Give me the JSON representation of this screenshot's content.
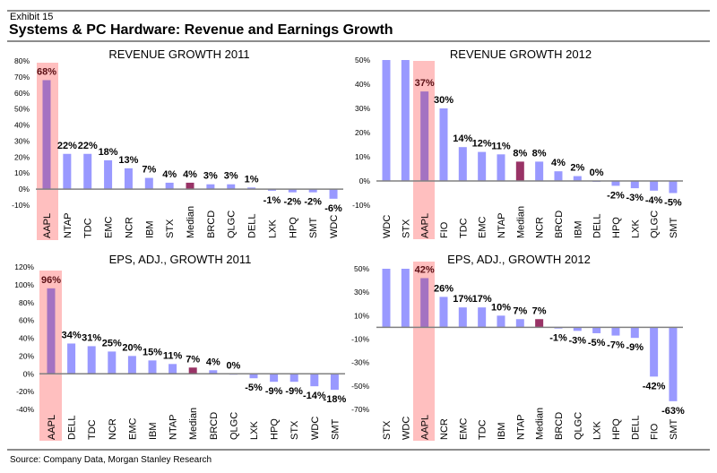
{
  "header": {
    "exhibit": "Exhibit 15",
    "title": "Systems & PC Hardware: Revenue and Earnings Growth"
  },
  "footer": {
    "source": "Source: Company Data, Morgan Stanley Research"
  },
  "colors": {
    "bar": "#9999ff",
    "median": "#993366",
    "highlight_band": "#ffbfbf",
    "highlight_bar": "#a472c2",
    "axis": "#808080"
  },
  "chart_data": [
    {
      "id": "rev2011",
      "type": "bar",
      "title": "REVENUE GROWTH 2011",
      "xlabel": "",
      "ylabel": "",
      "ylim": [
        -10,
        80
      ],
      "yticks": [
        80,
        70,
        60,
        50,
        40,
        30,
        20,
        10,
        0,
        -10
      ],
      "highlight": "AAPL",
      "median_category": "Median",
      "categories": [
        "AAPL",
        "NTAP",
        "TDC",
        "EMC",
        "NCR",
        "IBM",
        "STX",
        "Median",
        "BRCD",
        "QLGC",
        "DELL",
        "LXK",
        "HPQ",
        "SMT",
        "WDC"
      ],
      "values": [
        68,
        22,
        22,
        18,
        13,
        7,
        4,
        4,
        3,
        3,
        1,
        -1,
        -2,
        -2,
        -6
      ],
      "labels": [
        "68%",
        "22%",
        "22%",
        "18%",
        "13%",
        "7%",
        "4%",
        "4%",
        "3%",
        "3%",
        "1%",
        "-1%",
        "-2%",
        "-2%",
        "-6%"
      ],
      "grid": false,
      "legend": "none"
    },
    {
      "id": "rev2012",
      "type": "bar",
      "title": "REVENUE GROWTH 2012",
      "xlabel": "",
      "ylabel": "",
      "ylim": [
        -10,
        50
      ],
      "yticks": [
        50,
        40,
        30,
        20,
        10,
        0,
        -10
      ],
      "highlight": "AAPL",
      "median_category": "Median",
      "categories": [
        "WDC",
        "STX",
        "AAPL",
        "FIO",
        "TDC",
        "EMC",
        "NTAP",
        "Median",
        "NCR",
        "BRCD",
        "IBM",
        "DELL",
        "HPQ",
        "LXK",
        "QLGC",
        "SMT"
      ],
      "values": [
        50,
        50,
        37,
        30,
        14,
        12,
        11,
        8,
        8,
        4,
        2,
        0,
        -2,
        -3,
        -4,
        -5
      ],
      "labels": [
        "",
        "",
        "37%",
        "30%",
        "14%",
        "12%",
        "11%",
        "8%",
        "8%",
        "4%",
        "2%",
        "0%",
        "-2%",
        "-3%",
        "-4%",
        "-5%"
      ],
      "note": "WDC and STX bars clipped at axis maximum (50%), no data labels shown",
      "grid": false,
      "legend": "none"
    },
    {
      "id": "eps2011",
      "type": "bar",
      "title": "EPS, ADJ., GROWTH 2011",
      "xlabel": "",
      "ylabel": "",
      "ylim": [
        -40,
        120
      ],
      "yticks": [
        120,
        100,
        80,
        60,
        40,
        20,
        0,
        -20,
        -40
      ],
      "highlight": "AAPL",
      "median_category": "Median",
      "categories": [
        "AAPL",
        "DELL",
        "TDC",
        "NCR",
        "EMC",
        "IBM",
        "NTAP",
        "Median",
        "BRCD",
        "QLGC",
        "LXK",
        "HPQ",
        "STX",
        "WDC",
        "SMT"
      ],
      "values": [
        96,
        34,
        31,
        25,
        20,
        15,
        11,
        7,
        4,
        0,
        -5,
        -9,
        -9,
        -14,
        -18
      ],
      "labels": [
        "96%",
        "34%",
        "31%",
        "25%",
        "20%",
        "15%",
        "11%",
        "7%",
        "4%",
        "0%",
        "-5%",
        "-9%",
        "-9%",
        "-14%",
        "-18%"
      ],
      "grid": false,
      "legend": "none"
    },
    {
      "id": "eps2012",
      "type": "bar",
      "title": "EPS, ADJ., GROWTH 2012",
      "xlabel": "",
      "ylabel": "",
      "ylim": [
        -70,
        50
      ],
      "yticks": [
        50,
        30,
        10,
        -10,
        -30,
        -50,
        -70
      ],
      "highlight": "AAPL",
      "median_category": "Median",
      "categories": [
        "STX",
        "WDC",
        "AAPL",
        "NCR",
        "EMC",
        "TDC",
        "IBM",
        "NTAP",
        "Median",
        "BRCD",
        "QLGC",
        "LXK",
        "HPQ",
        "DELL",
        "FIO",
        "SMT"
      ],
      "values": [
        50,
        50,
        42,
        26,
        17,
        17,
        10,
        7,
        7,
        -1,
        -3,
        -5,
        -7,
        -9,
        -42,
        -63
      ],
      "labels": [
        "",
        "",
        "42%",
        "26%",
        "17%",
        "17%",
        "10%",
        "7%",
        "7%",
        "-1%",
        "-3%",
        "-5%",
        "-7%",
        "-9%",
        "-42%",
        "-63%"
      ],
      "note": "STX and WDC bars clipped at axis maximum (50%), no data labels shown",
      "grid": false,
      "legend": "none"
    }
  ]
}
